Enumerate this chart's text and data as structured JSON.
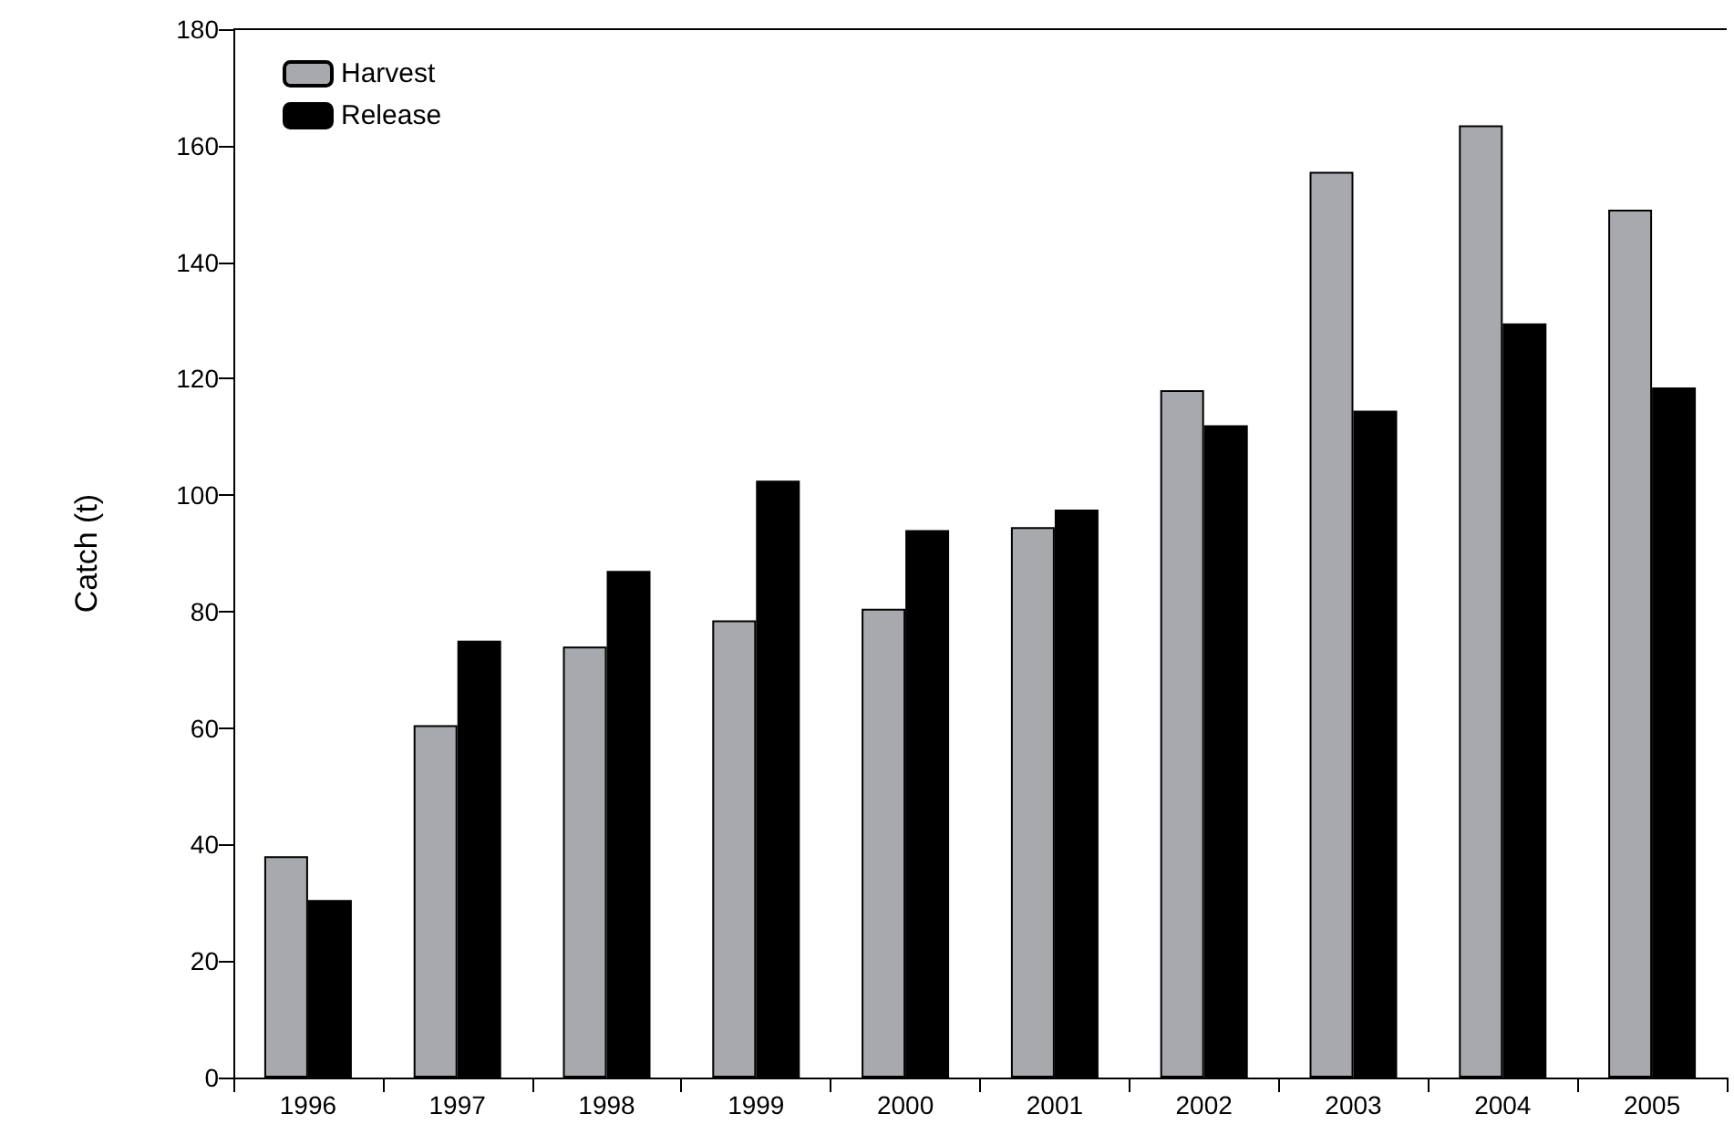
{
  "chart_data": {
    "type": "bar",
    "ylabel": "Catch (t)",
    "categories": [
      "1996",
      "1997",
      "1998",
      "1999",
      "2000",
      "2001",
      "2002",
      "2003",
      "2004",
      "2005"
    ],
    "series": [
      {
        "name": "Harvest",
        "color": "#a7a9ac",
        "values": [
          38,
          60.5,
          74,
          78.5,
          80.5,
          94.5,
          118,
          155.5,
          163.5,
          149
        ]
      },
      {
        "name": "Release",
        "color": "#000000",
        "values": [
          30.5,
          75,
          87,
          102.5,
          94,
          97.5,
          112,
          114.5,
          129.5,
          118.5
        ]
      }
    ],
    "ylim": [
      0,
      180
    ],
    "yticks": [
      0,
      20,
      40,
      60,
      80,
      100,
      120,
      140,
      160,
      180
    ],
    "grid": false,
    "legend": "top left"
  }
}
